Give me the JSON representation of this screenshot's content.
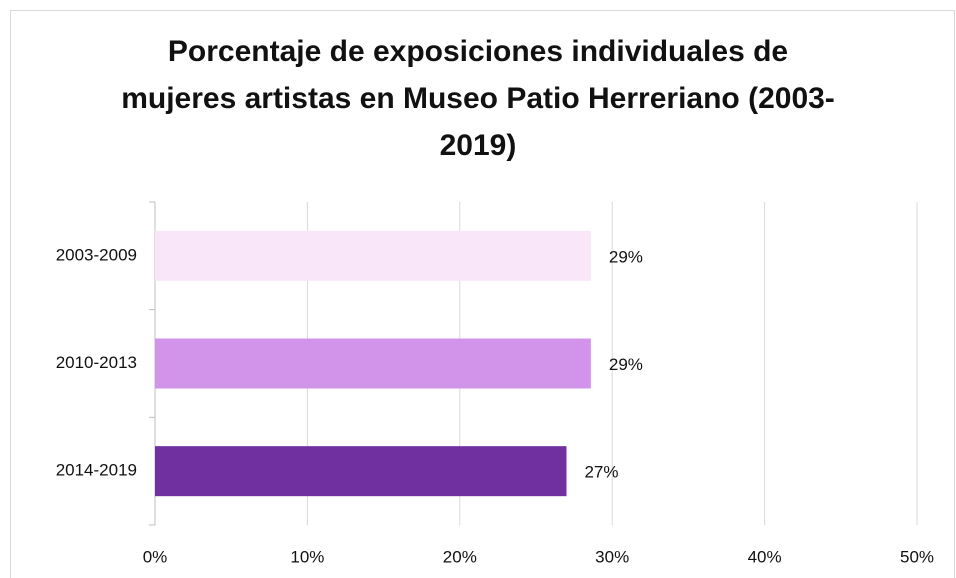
{
  "chart_data": {
    "type": "hbar",
    "title": "Porcentaje de exposiciones individuales de mujeres artistas en Museo Patio Herreriano (2003-2019)",
    "categories": [
      "2003-2009",
      "2010-2013",
      "2014-2019"
    ],
    "values": [
      28.6,
      28.6,
      27
    ],
    "value_labels": [
      "29%",
      "29%",
      "27%"
    ],
    "colors": [
      "#f9e6f9",
      "#d294ea",
      "#7030a0"
    ],
    "xlim": [
      0,
      50
    ],
    "xticks": [
      {
        "value": 0,
        "label": "0%"
      },
      {
        "value": 10,
        "label": "10%"
      },
      {
        "value": 20,
        "label": "20%"
      },
      {
        "value": 30,
        "label": "30%"
      },
      {
        "value": 40,
        "label": "40%"
      },
      {
        "value": 50,
        "label": "50%"
      }
    ],
    "grid": true
  }
}
